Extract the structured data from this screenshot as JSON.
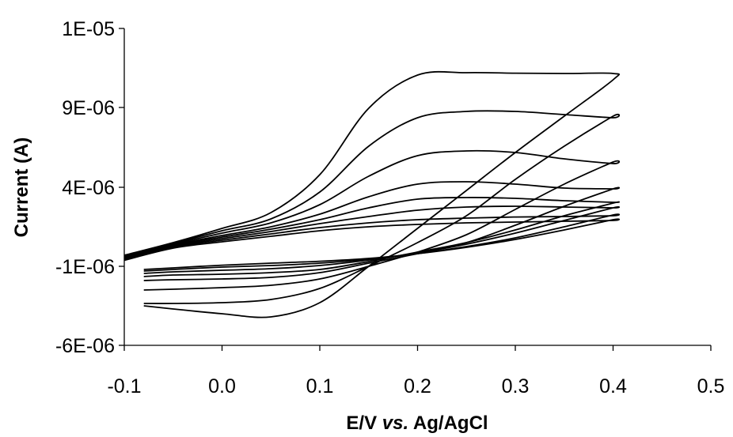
{
  "chart_data": {
    "type": "line",
    "title": "",
    "xlabel_parts": [
      {
        "text": "E/V ",
        "italic": false
      },
      {
        "text": "vs.",
        "italic": true
      },
      {
        "text": " Ag/AgCl",
        "italic": false
      }
    ],
    "ylabel": "Current (A)",
    "xlim": [
      -0.1,
      0.5
    ],
    "ylim": [
      -6e-06,
      1e-05
    ],
    "x_ticks": [
      -0.1,
      0.0,
      0.1,
      0.2,
      0.3,
      0.4,
      0.5
    ],
    "x_tick_labels": [
      "-0.1",
      "0.0",
      "0.1",
      "0.2",
      "0.3",
      "0.4",
      "0.5"
    ],
    "y_ticks": [
      -6e-06,
      -1e-06,
      4e-06,
      9e-06,
      1e-05
    ],
    "y_tick_labels": [
      "-6E-06",
      "-1E-06",
      "4E-06",
      "9E-06",
      "1E-05"
    ],
    "grid": false,
    "legend": "none",
    "series": [
      {
        "forward": [
          [
            -0.1,
            -6.2e-07
          ],
          [
            -0.05,
            1.5e-07
          ],
          [
            0.0,
            5.5e-07
          ],
          [
            0.05,
            9e-07
          ],
          [
            0.1,
            1.25e-06
          ],
          [
            0.15,
            1.5e-06
          ],
          [
            0.2,
            1.65e-06
          ],
          [
            0.25,
            1.75e-06
          ],
          [
            0.3,
            1.8e-06
          ],
          [
            0.35,
            1.85e-06
          ],
          [
            0.4,
            1.9e-06
          ]
        ],
        "reverse": [
          [
            0.4,
            1.95e-06
          ],
          [
            0.35,
            1.3e-06
          ],
          [
            0.3,
            7e-07
          ],
          [
            0.25,
            2e-07
          ],
          [
            0.2,
            -2e-07
          ],
          [
            0.15,
            -5e-07
          ],
          [
            0.1,
            -6.8e-07
          ],
          [
            0.05,
            -8e-07
          ],
          [
            0.0,
            -9.3e-07
          ],
          [
            -0.05,
            -1.1e-06
          ],
          [
            -0.08,
            -1.2e-06
          ]
        ]
      },
      {
        "forward": [
          [
            -0.1,
            -6e-07
          ],
          [
            -0.05,
            2e-07
          ],
          [
            0.0,
            6.5e-07
          ],
          [
            0.05,
            1.05e-06
          ],
          [
            0.1,
            1.45e-06
          ],
          [
            0.15,
            1.75e-06
          ],
          [
            0.2,
            1.95e-06
          ],
          [
            0.25,
            2.05e-06
          ],
          [
            0.3,
            2.12e-06
          ],
          [
            0.35,
            2.15e-06
          ],
          [
            0.4,
            2.2e-06
          ]
        ],
        "reverse": [
          [
            0.4,
            2.25e-06
          ],
          [
            0.35,
            1.5e-06
          ],
          [
            0.3,
            8e-07
          ],
          [
            0.25,
            2.5e-07
          ],
          [
            0.2,
            -2e-07
          ],
          [
            0.15,
            -5.5e-07
          ],
          [
            0.1,
            -8e-07
          ],
          [
            0.05,
            -9.5e-07
          ],
          [
            0.0,
            -1.05e-06
          ],
          [
            -0.05,
            -1.2e-06
          ],
          [
            -0.08,
            -1.3e-06
          ]
        ]
      },
      {
        "forward": [
          [
            -0.1,
            -5.5e-07
          ],
          [
            -0.05,
            2.5e-07
          ],
          [
            0.0,
            7.5e-07
          ],
          [
            0.05,
            1.2e-06
          ],
          [
            0.1,
            1.7e-06
          ],
          [
            0.15,
            2.15e-06
          ],
          [
            0.2,
            2.55e-06
          ],
          [
            0.25,
            2.75e-06
          ],
          [
            0.3,
            2.8e-06
          ],
          [
            0.35,
            2.75e-06
          ],
          [
            0.4,
            2.7e-06
          ]
        ],
        "reverse": [
          [
            0.4,
            2.7e-06
          ],
          [
            0.35,
            1.9e-06
          ],
          [
            0.3,
            1.1e-06
          ],
          [
            0.25,
            4e-07
          ],
          [
            0.2,
            -1.5e-07
          ],
          [
            0.15,
            -6e-07
          ],
          [
            0.1,
            -9.5e-07
          ],
          [
            0.05,
            -1.15e-06
          ],
          [
            0.0,
            -1.25e-06
          ],
          [
            -0.05,
            -1.35e-06
          ],
          [
            -0.08,
            -1.45e-06
          ]
        ]
      },
      {
        "forward": [
          [
            -0.1,
            -5e-07
          ],
          [
            -0.05,
            3e-07
          ],
          [
            0.0,
            8.5e-07
          ],
          [
            0.05,
            1.35e-06
          ],
          [
            0.1,
            1.95e-06
          ],
          [
            0.15,
            2.7e-06
          ],
          [
            0.2,
            3.25e-06
          ],
          [
            0.25,
            3.35e-06
          ],
          [
            0.3,
            3.3e-06
          ],
          [
            0.35,
            3.15e-06
          ],
          [
            0.4,
            3.05e-06
          ]
        ],
        "reverse": [
          [
            0.4,
            3e-06
          ],
          [
            0.35,
            2.2e-06
          ],
          [
            0.3,
            1.3e-06
          ],
          [
            0.25,
            5e-07
          ],
          [
            0.2,
            -1e-07
          ],
          [
            0.15,
            -7e-07
          ],
          [
            0.1,
            -1.2e-06
          ],
          [
            0.05,
            -1.4e-06
          ],
          [
            0.0,
            -1.5e-06
          ],
          [
            -0.05,
            -1.55e-06
          ],
          [
            -0.08,
            -1.65e-06
          ]
        ]
      },
      {
        "forward": [
          [
            -0.1,
            -4.5e-07
          ],
          [
            -0.05,
            3.5e-07
          ],
          [
            0.0,
            9.5e-07
          ],
          [
            0.05,
            1.5e-06
          ],
          [
            0.1,
            2.3e-06
          ],
          [
            0.15,
            3.4e-06
          ],
          [
            0.2,
            4.2e-06
          ],
          [
            0.25,
            4.35e-06
          ],
          [
            0.3,
            4.2e-06
          ],
          [
            0.35,
            3.95e-06
          ],
          [
            0.4,
            3.9e-06
          ]
        ],
        "reverse": [
          [
            0.4,
            3.9e-06
          ],
          [
            0.35,
            2.8e-06
          ],
          [
            0.3,
            1.6e-06
          ],
          [
            0.25,
            5e-07
          ],
          [
            0.2,
            -2e-07
          ],
          [
            0.15,
            -8e-07
          ],
          [
            0.1,
            -1.4e-06
          ],
          [
            0.05,
            -1.7e-06
          ],
          [
            0.0,
            -1.8e-06
          ],
          [
            -0.05,
            -1.85e-06
          ],
          [
            -0.08,
            -1.9e-06
          ]
        ]
      },
      {
        "forward": [
          [
            -0.1,
            -4e-07
          ],
          [
            -0.05,
            4e-07
          ],
          [
            0.0,
            1.1e-06
          ],
          [
            0.05,
            1.75e-06
          ],
          [
            0.1,
            2.9e-06
          ],
          [
            0.15,
            4.7e-06
          ],
          [
            0.2,
            6e-06
          ],
          [
            0.25,
            6.3e-06
          ],
          [
            0.3,
            6.2e-06
          ],
          [
            0.35,
            5.8e-06
          ],
          [
            0.4,
            5.5e-06
          ]
        ],
        "reverse": [
          [
            0.4,
            5.6e-06
          ],
          [
            0.35,
            4.2e-06
          ],
          [
            0.3,
            2.6e-06
          ],
          [
            0.25,
            1e-06
          ],
          [
            0.2,
            -1e-07
          ],
          [
            0.15,
            -1e-06
          ],
          [
            0.1,
            -1.8e-06
          ],
          [
            0.05,
            -2.2e-06
          ],
          [
            0.0,
            -2.35e-06
          ],
          [
            -0.05,
            -2.45e-06
          ],
          [
            -0.08,
            -2.5e-06
          ]
        ]
      },
      {
        "forward": [
          [
            -0.1,
            -3.5e-07
          ],
          [
            -0.05,
            4.5e-07
          ],
          [
            0.0,
            1.25e-06
          ],
          [
            0.05,
            2e-06
          ],
          [
            0.1,
            3.7e-06
          ],
          [
            0.15,
            6.6e-06
          ],
          [
            0.2,
            8.4e-06
          ],
          [
            0.25,
            8.8e-06
          ],
          [
            0.3,
            8.8e-06
          ],
          [
            0.35,
            8.6e-06
          ],
          [
            0.4,
            8.4e-06
          ]
        ],
        "reverse": [
          [
            0.4,
            8.5e-06
          ],
          [
            0.35,
            6.6e-06
          ],
          [
            0.3,
            4.5e-06
          ],
          [
            0.25,
            2.2e-06
          ],
          [
            0.2,
            5e-07
          ],
          [
            0.15,
            -1e-06
          ],
          [
            0.1,
            -2.4e-06
          ],
          [
            0.05,
            -3.1e-06
          ],
          [
            0.0,
            -3.3e-06
          ],
          [
            -0.05,
            -3.35e-06
          ],
          [
            -0.08,
            -3.35e-06
          ]
        ]
      },
      {
        "forward": [
          [
            -0.1,
            -3e-07
          ],
          [
            -0.05,
            5e-07
          ],
          [
            0.0,
            1.4e-06
          ],
          [
            0.05,
            2.4e-06
          ],
          [
            0.1,
            4.8e-06
          ],
          [
            0.15,
            9e-06
          ],
          [
            0.2,
            1.11e-05
          ],
          [
            0.25,
            1.125e-05
          ],
          [
            0.3,
            1.122e-05
          ],
          [
            0.35,
            1.12e-05
          ],
          [
            0.4,
            1.12e-05
          ]
        ],
        "reverse": [
          [
            0.4,
            1.08e-05
          ],
          [
            0.35,
            8.5e-06
          ],
          [
            0.3,
            6.2e-06
          ],
          [
            0.25,
            3.8e-06
          ],
          [
            0.2,
            1.4e-06
          ],
          [
            0.15,
            -1e-06
          ],
          [
            0.1,
            -3.3e-06
          ],
          [
            0.05,
            -4.2e-06
          ],
          [
            0.0,
            -4e-06
          ],
          [
            -0.05,
            -3.7e-06
          ],
          [
            -0.08,
            -3.5e-06
          ]
        ]
      }
    ]
  }
}
